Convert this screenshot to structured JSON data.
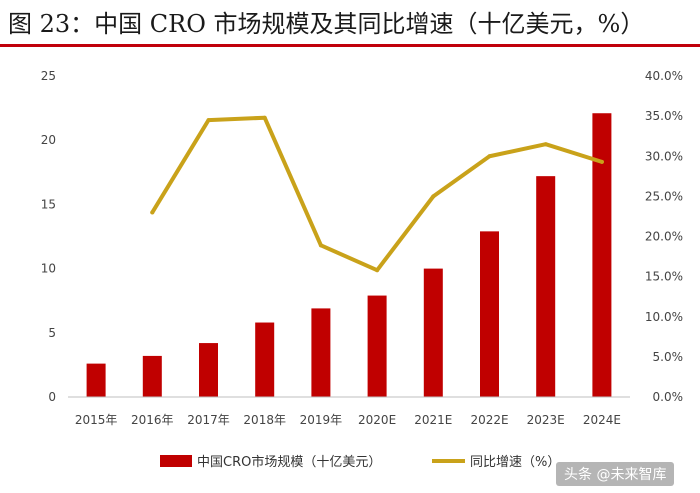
{
  "title": "图 23：中国 CRO 市场规模及其同比增速（十亿美元，%）",
  "watermark": "头条 @未来智库",
  "colors": {
    "bar": "#c00000",
    "line": "#c9a21a",
    "title_rule": "#c0000a"
  },
  "chart_data": {
    "type": "bar+line",
    "categories": [
      "2015年",
      "2016年",
      "2017年",
      "2018年",
      "2019年",
      "2020E",
      "2021E",
      "2022E",
      "2023E",
      "2024E"
    ],
    "left_ticks": [
      "0",
      "5",
      "10",
      "15",
      "20",
      "25"
    ],
    "right_ticks": [
      "0.0%",
      "5.0%",
      "10.0%",
      "15.0%",
      "20.0%",
      "25.0%",
      "30.0%",
      "35.0%",
      "40.0%"
    ],
    "ylim_left": [
      0,
      25
    ],
    "ylim_right": [
      0,
      40
    ],
    "grid": false,
    "legend_position": "bottom",
    "series": [
      {
        "name": "中国CRO市场规模（十亿美元）",
        "type": "bar",
        "axis": "left",
        "values": [
          2.6,
          3.2,
          4.2,
          5.8,
          6.9,
          7.9,
          10.0,
          12.9,
          17.2,
          22.1
        ]
      },
      {
        "name": "同比增速（%）",
        "type": "line",
        "axis": "right",
        "values": [
          null,
          23.0,
          34.5,
          34.8,
          18.9,
          15.8,
          25.0,
          30.0,
          31.5,
          29.3
        ]
      }
    ]
  }
}
